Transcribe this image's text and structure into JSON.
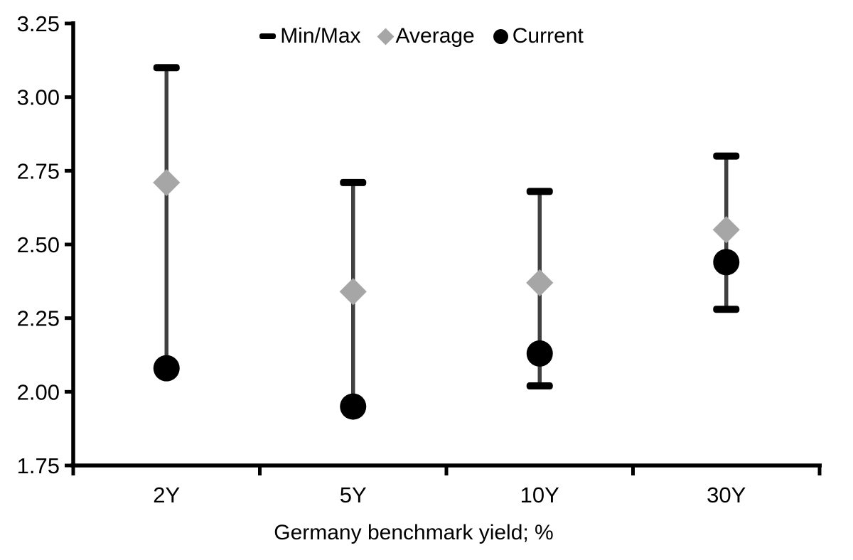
{
  "chart_data": {
    "type": "scatter",
    "title": "",
    "categories": [
      "2Y",
      "5Y",
      "10Y",
      "30Y"
    ],
    "series": [
      {
        "name": "Min/Max",
        "role": "range",
        "marker": "dash",
        "min": [
          2.08,
          1.95,
          2.02,
          2.28
        ],
        "max": [
          3.1,
          2.71,
          2.68,
          2.8
        ]
      },
      {
        "name": "Average",
        "role": "point",
        "marker": "diamond",
        "values": [
          2.71,
          2.34,
          2.37,
          2.55
        ]
      },
      {
        "name": "Current",
        "role": "point",
        "marker": "circle",
        "values": [
          2.08,
          1.95,
          2.13,
          2.44
        ]
      }
    ],
    "xlabel": "Germany benchmark yield; %",
    "ylabel": "",
    "ylim": [
      1.75,
      3.25
    ],
    "ytick_step": 0.25,
    "ytick_labels": [
      "1.75",
      "2.00",
      "2.25",
      "2.50",
      "2.75",
      "3.00",
      "3.25"
    ],
    "legend_position": "top",
    "grid": false
  },
  "legend": {
    "items": [
      {
        "label": "Min/Max",
        "marker": "dash",
        "color": "#000000"
      },
      {
        "label": "Average",
        "marker": "diamond",
        "color": "#a6a6a6"
      },
      {
        "label": "Current",
        "marker": "circle",
        "color": "#000000"
      }
    ]
  },
  "style": {
    "background": "#ffffff",
    "axis_color": "#000000",
    "text_color": "#000000",
    "range_line_color": "#404040",
    "minmax_cap_color": "#000000",
    "average_color": "#a6a6a6",
    "current_color": "#000000"
  }
}
